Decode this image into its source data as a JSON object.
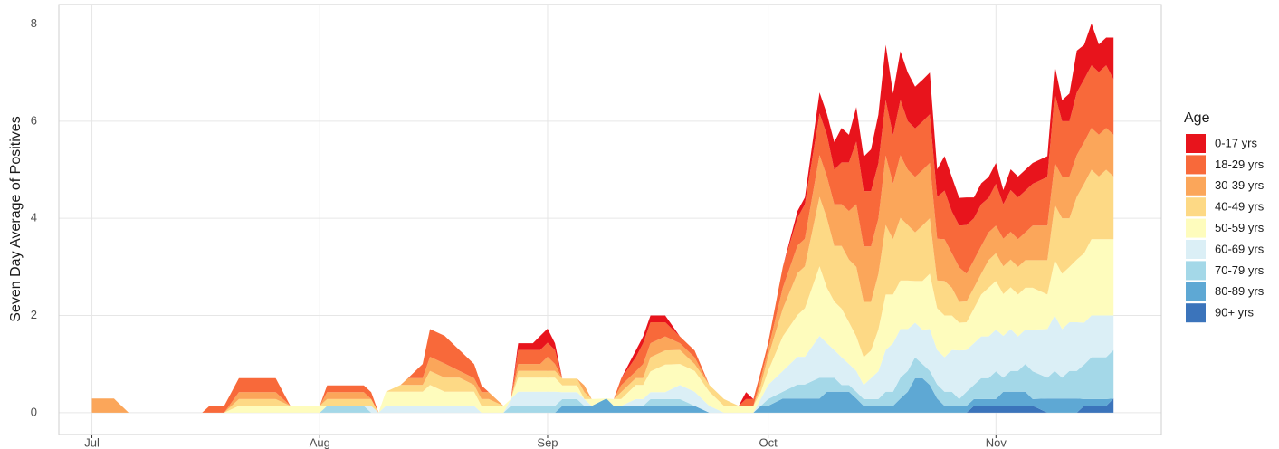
{
  "chart_data": {
    "type": "stacked_area",
    "y_label": "Seven Day Average of Positives",
    "legend_title": "Age",
    "legend_position": "right",
    "grid": true,
    "xlim": [
      -4.5,
      145.5
    ],
    "xticks": [
      {
        "value": 0,
        "label": "Jul"
      },
      {
        "value": 31,
        "label": "Aug"
      },
      {
        "value": 62,
        "label": "Sep"
      },
      {
        "value": 92,
        "label": "Oct"
      },
      {
        "value": 123,
        "label": "Nov"
      }
    ],
    "ylim": [
      -0.45,
      8.4
    ],
    "yticks": [
      0,
      2,
      4,
      6,
      8
    ],
    "x": [
      0,
      3,
      5,
      15,
      16,
      18,
      20,
      25,
      27,
      31,
      32,
      37,
      38,
      39,
      40,
      42,
      43,
      45,
      46,
      48,
      50,
      52,
      53,
      54,
      56,
      57,
      58,
      60,
      61,
      62,
      63,
      64,
      66,
      67,
      68,
      70,
      71,
      72,
      74,
      75,
      76,
      78,
      80,
      82,
      84,
      86,
      88,
      89,
      90,
      91,
      92,
      94,
      96,
      97,
      99,
      100,
      101,
      102,
      103,
      104,
      105,
      106,
      107,
      108,
      109,
      110,
      111,
      112,
      113,
      114,
      115,
      116,
      117,
      118,
      119,
      120,
      121,
      122,
      123,
      124,
      125,
      126,
      127,
      128,
      130,
      131,
      132,
      133,
      134,
      135,
      136,
      137,
      138,
      139
    ],
    "series": [
      {
        "name": "0-17 yrs",
        "color": "#e8141c",
        "values": [
          0,
          0,
          0,
          0,
          0,
          0,
          0,
          0,
          0,
          0,
          0,
          0,
          0,
          0,
          0,
          0,
          0,
          0,
          0,
          0,
          0,
          0,
          0,
          0,
          0,
          0,
          0.14,
          0.14,
          0.29,
          0.29,
          0.14,
          0,
          0,
          0,
          0,
          0,
          0,
          0,
          0.14,
          0.14,
          0.14,
          0.14,
          0,
          0,
          0,
          0,
          0,
          0.14,
          0,
          0,
          0,
          0,
          0.14,
          0.14,
          0.43,
          0.43,
          0.57,
          0.71,
          0.57,
          0.71,
          0.71,
          0.86,
          1,
          1.14,
          0.86,
          1,
          1,
          0.86,
          0.86,
          0.86,
          0.57,
          0.71,
          0.71,
          0.57,
          0.57,
          0.43,
          0.43,
          0.43,
          0.43,
          0.29,
          0.43,
          0.43,
          0.43,
          0.43,
          0.43,
          0.57,
          0.43,
          0.57,
          0.86,
          0.71,
          0.86,
          0.57,
          0.57,
          0.86
        ]
      },
      {
        "name": "18-29 yrs",
        "color": "#f8693a",
        "values": [
          0,
          0,
          0,
          0,
          0.14,
          0.14,
          0.29,
          0.29,
          0,
          0,
          0.14,
          0.14,
          0.14,
          0,
          0,
          0,
          0,
          0.29,
          0.57,
          0.57,
          0.43,
          0.29,
          0.14,
          0,
          0,
          0,
          0.29,
          0.29,
          0.29,
          0.29,
          0.29,
          0,
          0,
          0,
          0,
          0,
          0,
          0.14,
          0.29,
          0.43,
          0.43,
          0.29,
          0.14,
          0.14,
          0,
          0,
          0,
          0.14,
          0.14,
          0.14,
          0.14,
          0.43,
          0.57,
          0.71,
          0.86,
          0.86,
          0.71,
          0.86,
          1,
          1.29,
          1.14,
          1.14,
          1.14,
          1.14,
          1,
          1.14,
          1,
          1,
          1,
          1,
          0.86,
          1,
          0.86,
          0.86,
          1,
          0.86,
          0.86,
          0.71,
          0.86,
          0.71,
          0.86,
          0.86,
          0.86,
          0.86,
          1,
          1.43,
          1.14,
          1.14,
          1.29,
          1.29,
          1.29,
          1.29,
          1.29,
          1.14
        ]
      },
      {
        "name": "30-39 yrs",
        "color": "#fba65a",
        "values": [
          0.29,
          0.29,
          0,
          0,
          0,
          0,
          0.14,
          0.14,
          0,
          0,
          0.14,
          0.14,
          0,
          0,
          0,
          0,
          0.14,
          0.14,
          0.29,
          0.29,
          0.14,
          0.14,
          0.14,
          0.14,
          0,
          0,
          0.14,
          0.14,
          0.14,
          0.29,
          0.14,
          0,
          0,
          0.14,
          0,
          0,
          0,
          0.14,
          0.14,
          0.29,
          0.29,
          0.29,
          0.14,
          0.14,
          0,
          0,
          0,
          0,
          0,
          0.14,
          0.14,
          0.43,
          0.57,
          0.57,
          0.86,
          0.86,
          0.86,
          0.86,
          1,
          1.29,
          1.14,
          1.14,
          1.14,
          1.43,
          1.14,
          1.29,
          1.14,
          1.14,
          1.14,
          1.14,
          0.86,
          0.86,
          0.71,
          0.71,
          0.57,
          0.57,
          0.57,
          0.57,
          0.57,
          0.57,
          0.57,
          0.57,
          0.57,
          0.71,
          0.71,
          0.86,
          0.86,
          0.86,
          0.86,
          0.86,
          0.86,
          0.86,
          0.86,
          0.86
        ]
      },
      {
        "name": "40-49 yrs",
        "color": "#fdd985",
        "values": [
          0,
          0,
          0,
          0,
          0,
          0,
          0.14,
          0.14,
          0,
          0,
          0.14,
          0.14,
          0.14,
          0,
          0,
          0.14,
          0.14,
          0.14,
          0.29,
          0.29,
          0.29,
          0.14,
          0.14,
          0.14,
          0,
          0,
          0.14,
          0.14,
          0.14,
          0.14,
          0.14,
          0.14,
          0.14,
          0.14,
          0,
          0,
          0,
          0.14,
          0.14,
          0.14,
          0.29,
          0.29,
          0.29,
          0.14,
          0.14,
          0.14,
          0,
          0,
          0,
          0.14,
          0.29,
          0.57,
          0.86,
          0.86,
          1.43,
          1.43,
          1.14,
          1.29,
          1.29,
          1.43,
          1.14,
          1,
          1.14,
          1.43,
          1.14,
          1.29,
          1.14,
          1,
          1.14,
          1.14,
          0.57,
          0.71,
          0.57,
          0.43,
          0.43,
          0.43,
          0.43,
          0.57,
          0.57,
          0.57,
          0.57,
          0.57,
          0.57,
          0.57,
          0.71,
          1.14,
          1.14,
          1,
          1.29,
          1.43,
          1.43,
          1.29,
          1.43,
          1.29
        ]
      },
      {
        "name": "50-59 yrs",
        "color": "#fefcbd",
        "values": [
          0,
          0,
          0,
          0,
          0,
          0,
          0.14,
          0.14,
          0.14,
          0.14,
          0,
          0,
          0,
          0,
          0.29,
          0.29,
          0.29,
          0.29,
          0.43,
          0.29,
          0.29,
          0.29,
          0.14,
          0.14,
          0.14,
          0,
          0.29,
          0.29,
          0.29,
          0.29,
          0.29,
          0.14,
          0.14,
          0,
          0.14,
          0,
          0.14,
          0.14,
          0.29,
          0.29,
          0.43,
          0.57,
          0.43,
          0.43,
          0.29,
          0.14,
          0.14,
          0.14,
          0.14,
          0.14,
          0.29,
          0.71,
          0.86,
          1,
          1.43,
          1.14,
          1,
          1,
          0.86,
          0.71,
          0.57,
          0.57,
          0.86,
          1.14,
          1,
          1,
          1,
          0.86,
          1,
          1.14,
          0.86,
          0.86,
          0.71,
          0.57,
          0.57,
          0.71,
          0.86,
          1,
          1,
          0.86,
          0.86,
          0.86,
          0.86,
          0.86,
          0.71,
          1.14,
          1.14,
          1.14,
          1.29,
          1.43,
          1.57,
          1.57,
          1.57,
          1.57
        ]
      },
      {
        "name": "60-69 yrs",
        "color": "#dbeff6",
        "values": [
          0,
          0,
          0,
          0,
          0,
          0,
          0,
          0,
          0,
          0,
          0,
          0,
          0.14,
          0,
          0.14,
          0.14,
          0.14,
          0.14,
          0.14,
          0.14,
          0.14,
          0.14,
          0,
          0,
          0,
          0.14,
          0.29,
          0.29,
          0.29,
          0.29,
          0.29,
          0.14,
          0.14,
          0.14,
          0,
          0,
          0,
          0,
          0.14,
          0.14,
          0.14,
          0.14,
          0.29,
          0.29,
          0.14,
          0,
          0,
          0,
          0,
          0.14,
          0.29,
          0.43,
          0.57,
          0.57,
          0.86,
          0.71,
          0.57,
          0.57,
          0.43,
          0.43,
          0.29,
          0.43,
          0.57,
          0.86,
          1,
          1,
          0.86,
          0.71,
          0.71,
          0.86,
          0.71,
          0.71,
          0.86,
          1,
          0.86,
          0.86,
          0.86,
          0.86,
          0.86,
          0.86,
          0.86,
          0.71,
          0.71,
          0.86,
          1,
          1.14,
          1,
          1,
          1,
          0.86,
          0.86,
          0.86,
          0.86,
          0.71
        ]
      },
      {
        "name": "70-79 yrs",
        "color": "#a4d8e8",
        "values": [
          0,
          0,
          0,
          0,
          0,
          0,
          0,
          0,
          0,
          0,
          0.14,
          0.14,
          0,
          0,
          0,
          0,
          0,
          0,
          0,
          0,
          0,
          0,
          0,
          0,
          0,
          0.14,
          0.14,
          0.14,
          0.14,
          0.14,
          0.14,
          0.14,
          0.14,
          0,
          0,
          0,
          0,
          0,
          0,
          0,
          0.14,
          0.14,
          0.14,
          0,
          0,
          0,
          0,
          0,
          0,
          0,
          0.14,
          0.14,
          0.29,
          0.29,
          0.43,
          0.29,
          0.29,
          0.14,
          0.14,
          0.14,
          0.14,
          0.14,
          0.14,
          0.29,
          0.29,
          0.43,
          0.43,
          0.43,
          0.29,
          0.29,
          0.29,
          0.29,
          0.29,
          0.14,
          0.29,
          0.29,
          0.43,
          0.43,
          0.57,
          0.29,
          0.43,
          0.43,
          0.57,
          0.57,
          0.43,
          0.57,
          0.43,
          0.57,
          0.57,
          0.71,
          0.86,
          0.86,
          0.86,
          1
        ]
      },
      {
        "name": "80-89 yrs",
        "color": "#5ea8d4",
        "values": [
          0,
          0,
          0,
          0,
          0,
          0,
          0,
          0,
          0,
          0,
          0,
          0,
          0,
          0,
          0,
          0,
          0,
          0,
          0,
          0,
          0,
          0,
          0,
          0,
          0,
          0,
          0,
          0,
          0,
          0,
          0,
          0.14,
          0.14,
          0.14,
          0.14,
          0.29,
          0.14,
          0.14,
          0.14,
          0.14,
          0.14,
          0.14,
          0.14,
          0.14,
          0,
          0,
          0,
          0,
          0,
          0.14,
          0.14,
          0.29,
          0.29,
          0.29,
          0.29,
          0.43,
          0.43,
          0.43,
          0.43,
          0.29,
          0.14,
          0.14,
          0.14,
          0.14,
          0.14,
          0.29,
          0.43,
          0.71,
          0.71,
          0.57,
          0.29,
          0.14,
          0.14,
          0.14,
          0.14,
          0.14,
          0.14,
          0.14,
          0.14,
          0.29,
          0.29,
          0.29,
          0.29,
          0.14,
          0.29,
          0.29,
          0.29,
          0.29,
          0.29,
          0.14,
          0.14,
          0.14,
          0.14,
          0
        ]
      },
      {
        "name": "90+ yrs",
        "color": "#3b74bb",
        "values": [
          0,
          0,
          0,
          0,
          0,
          0,
          0,
          0,
          0,
          0,
          0,
          0,
          0,
          0,
          0,
          0,
          0,
          0,
          0,
          0,
          0,
          0,
          0,
          0,
          0,
          0,
          0,
          0,
          0,
          0,
          0,
          0,
          0,
          0,
          0,
          0,
          0,
          0,
          0,
          0,
          0,
          0,
          0,
          0,
          0,
          0,
          0,
          0,
          0,
          0,
          0,
          0,
          0,
          0,
          0,
          0,
          0,
          0,
          0,
          0,
          0,
          0,
          0,
          0,
          0,
          0,
          0,
          0,
          0,
          0,
          0,
          0,
          0,
          0,
          0,
          0.14,
          0.14,
          0.14,
          0.14,
          0.14,
          0.14,
          0.14,
          0.14,
          0.14,
          0,
          0,
          0,
          0,
          0,
          0.14,
          0.14,
          0.14,
          0.14,
          0.29
        ]
      }
    ]
  }
}
